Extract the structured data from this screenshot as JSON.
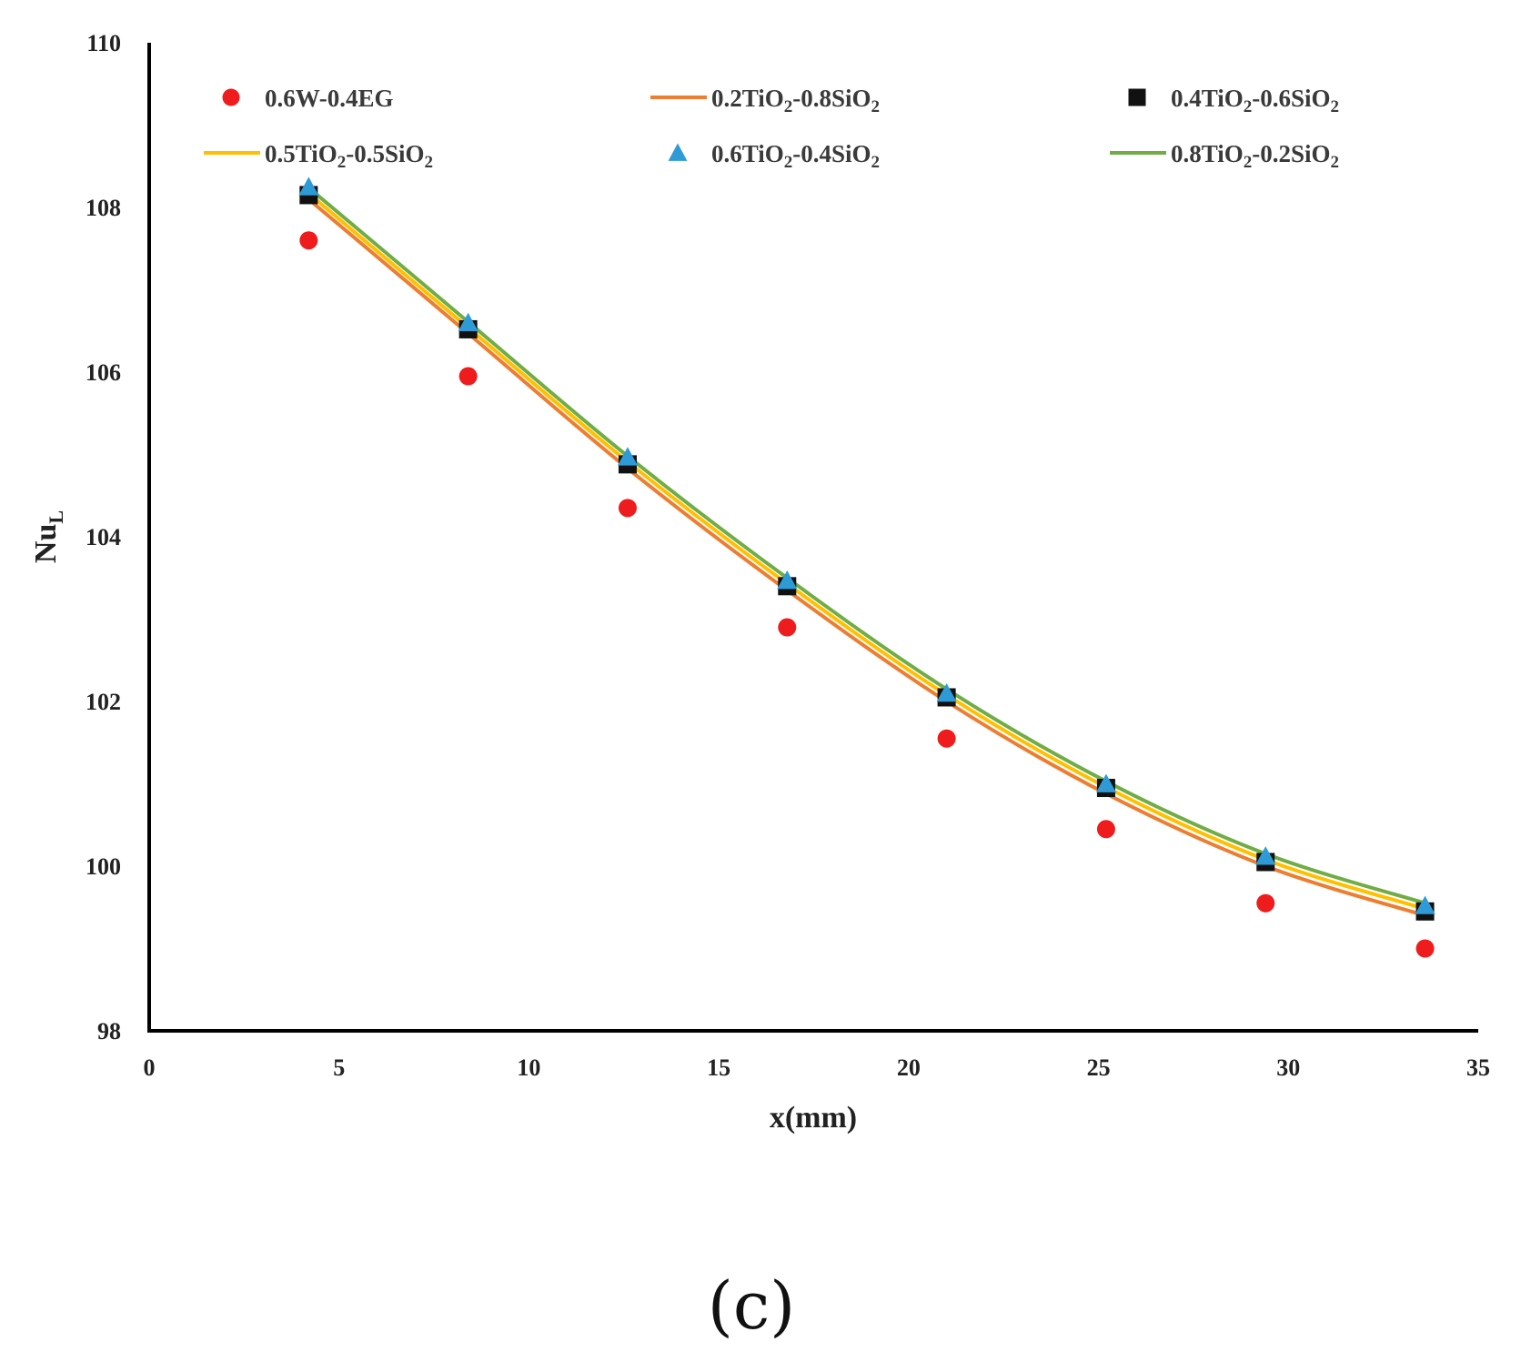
{
  "chart_data": {
    "type": "line",
    "title": "",
    "xlabel": "x(mm)",
    "ylabel_main": "Nu",
    "ylabel_sub": "L",
    "xlim": [
      0,
      35
    ],
    "ylim": [
      98,
      110
    ],
    "xticks": [
      "0",
      "5",
      "10",
      "15",
      "20",
      "25",
      "30",
      "35"
    ],
    "yticks": [
      "98",
      "100",
      "102",
      "104",
      "106",
      "108",
      "110"
    ],
    "grid": false,
    "legend_position": "top",
    "x": [
      4.2,
      8.4,
      12.6,
      16.8,
      21.0,
      25.2,
      29.4,
      33.6
    ],
    "series": [
      {
        "name": "0.6W-0.4EG",
        "style": "marker",
        "marker": "circle",
        "color": "#ee1c1c",
        "values": [
          107.6,
          105.95,
          104.35,
          102.9,
          101.55,
          100.45,
          99.55,
          99.0
        ]
      },
      {
        "name": "0.2TiO2-0.8SiO2",
        "style": "line",
        "color": "#ed7d31",
        "values": [
          108.1,
          106.47,
          104.83,
          103.35,
          102.0,
          100.88,
          100.0,
          99.4
        ]
      },
      {
        "name": "0.4TiO2-0.6SiO2",
        "style": "marker",
        "marker": "square",
        "color": "#111111",
        "values": [
          108.15,
          106.52,
          104.88,
          103.4,
          102.05,
          100.95,
          100.05,
          99.45
        ]
      },
      {
        "name": "0.5TiO2-0.5SiO2",
        "style": "line",
        "color": "#ffc000",
        "values": [
          108.17,
          106.54,
          104.91,
          103.43,
          102.08,
          100.96,
          100.08,
          99.48
        ]
      },
      {
        "name": "0.6TiO2-0.4SiO2",
        "style": "marker",
        "marker": "triangle",
        "color": "#2e9bd6",
        "values": [
          108.25,
          106.6,
          104.97,
          103.47,
          102.1,
          101.0,
          100.12,
          99.52
        ]
      },
      {
        "name": "0.8TiO2-0.2SiO2",
        "style": "line",
        "color": "#70ad47",
        "values": [
          108.24,
          106.61,
          104.98,
          103.5,
          102.15,
          101.03,
          100.15,
          99.55
        ]
      }
    ],
    "legend": [
      [
        {
          "prefix": "0.6W-0.4EG",
          "sub": "",
          "suffix": ""
        },
        {
          "prefix": "0.2TiO",
          "sub": "2",
          "suffix": "-0.8SiO",
          "sub2": "2"
        },
        {
          "prefix": "0.4TiO",
          "sub": "2",
          "suffix": "-0.6SiO",
          "sub2": "2"
        }
      ],
      [
        {
          "prefix": "0.5TiO",
          "sub": "2",
          "suffix": "-0.5SiO",
          "sub2": "2"
        },
        {
          "prefix": "0.6TiO",
          "sub": "2",
          "suffix": "-0.4SiO",
          "sub2": "2"
        },
        {
          "prefix": "0.8TiO",
          "sub": "2",
          "suffix": "-0.2SiO",
          "sub2": "2"
        }
      ]
    ],
    "panel_label": "(c)"
  }
}
